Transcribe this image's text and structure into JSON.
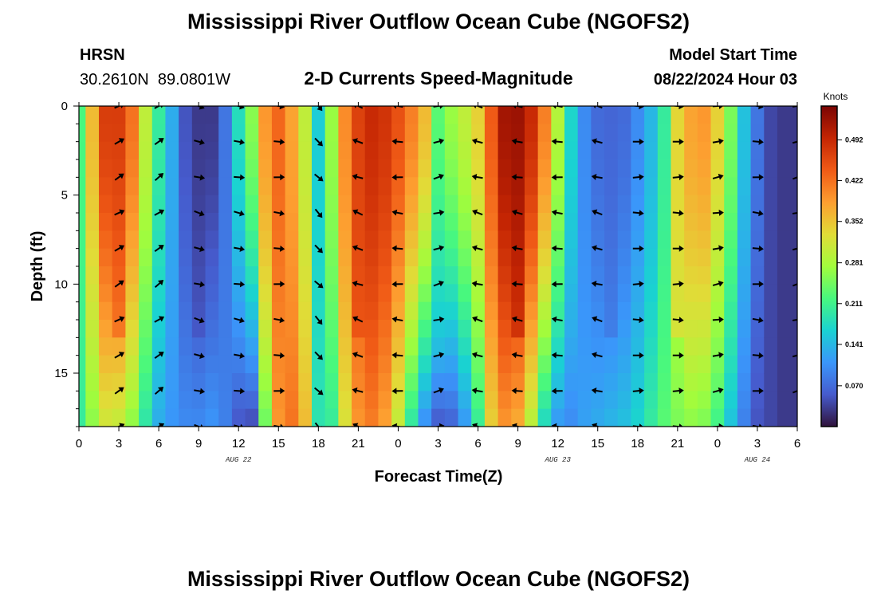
{
  "page": {
    "title_top": "Mississippi River Outflow Ocean Cube (NGOFS2)",
    "title_bottom": "Mississippi River Outflow Ocean Cube (NGOFS2)",
    "station_name": "HRSN",
    "station_coords": "30.2610N  89.0801W",
    "subtitle": "2-D Currents Speed-Magnitude",
    "model_start_label": "Model Start Time",
    "model_start_value": "08/22/2024 Hour 03"
  },
  "chart_data": {
    "type": "heatmap",
    "title": "2-D Currents Speed-Magnitude",
    "xlabel": "Forecast Time(Z)",
    "ylabel": "Depth (ft)",
    "x_range_hours": [
      0,
      54
    ],
    "y_range_ft": [
      0,
      18
    ],
    "x_tick_labels": [
      "0",
      "3",
      "6",
      "9",
      "12",
      "15",
      "18",
      "21",
      "0",
      "3",
      "6",
      "9",
      "12",
      "15",
      "18",
      "21",
      "0",
      "3",
      "6"
    ],
    "y_tick_labels": [
      "0",
      "5",
      "10",
      "15"
    ],
    "y_tick_values": [
      0,
      5,
      10,
      15
    ],
    "date_labels": [
      {
        "text": "AUG 22",
        "hour": 12
      },
      {
        "text": "AUG 23",
        "hour": 36
      },
      {
        "text": "AUG 24",
        "hour": 51
      }
    ],
    "colorbar": {
      "unit": "Knots",
      "range": [
        0.0,
        0.55
      ],
      "tick_labels": [
        "0.492",
        "0.422",
        "0.352",
        "0.281",
        "0.211",
        "0.141",
        "0.070"
      ],
      "tick_values": [
        0.492,
        0.422,
        0.352,
        0.281,
        0.211,
        0.141,
        0.07
      ]
    },
    "series_hours": [
      0,
      1,
      2,
      3,
      4,
      5,
      6,
      7,
      8,
      9,
      10,
      11,
      12,
      13,
      14,
      15,
      16,
      17,
      18,
      19,
      20,
      21,
      22,
      23,
      24,
      25,
      26,
      27,
      28,
      29,
      30,
      31,
      32,
      33,
      34,
      35,
      36,
      37,
      38,
      39,
      40,
      41,
      42,
      43,
      44,
      45,
      46,
      47,
      48,
      49,
      50,
      51,
      52,
      53,
      54
    ],
    "surface_speed_knots": [
      0.22,
      0.36,
      0.47,
      0.49,
      0.42,
      0.3,
      0.2,
      0.13,
      0.05,
      0.02,
      0.03,
      0.08,
      0.18,
      0.26,
      0.39,
      0.43,
      0.38,
      0.3,
      0.16,
      0.27,
      0.4,
      0.46,
      0.49,
      0.48,
      0.45,
      0.41,
      0.36,
      0.31,
      0.27,
      0.3,
      0.34,
      0.44,
      0.52,
      0.53,
      0.49,
      0.41,
      0.29,
      0.17,
      0.1,
      0.07,
      0.06,
      0.07,
      0.1,
      0.14,
      0.2,
      0.31,
      0.38,
      0.39,
      0.34,
      0.25,
      0.15,
      0.08,
      0.04,
      0.03,
      0.03
    ],
    "bottom_speed_knots": [
      0.2,
      0.26,
      0.31,
      0.3,
      0.26,
      0.19,
      0.13,
      0.11,
      0.1,
      0.1,
      0.11,
      0.09,
      0.05,
      0.04,
      0.24,
      0.39,
      0.42,
      0.36,
      0.19,
      0.2,
      0.32,
      0.39,
      0.41,
      0.38,
      0.3,
      0.19,
      0.1,
      0.05,
      0.06,
      0.11,
      0.2,
      0.34,
      0.39,
      0.37,
      0.29,
      0.17,
      0.11,
      0.1,
      0.12,
      0.13,
      0.14,
      0.15,
      0.17,
      0.2,
      0.23,
      0.25,
      0.26,
      0.25,
      0.21,
      0.15,
      0.09,
      0.05,
      0.04,
      0.03,
      0.03
    ],
    "mid_column_speed_knots": [
      {
        "hour": 3,
        "speed": 0.45
      },
      {
        "hour": 9,
        "speed": 0.04
      },
      {
        "hour": 21,
        "speed": 0.47
      },
      {
        "hour": 27,
        "speed": 0.15
      },
      {
        "hour": 33,
        "speed": 0.52
      },
      {
        "hour": 40,
        "speed": 0.07
      },
      {
        "hour": 45,
        "speed": 0.36
      },
      {
        "hour": 52,
        "speed": 0.04
      }
    ],
    "vector_direction_deg_by_hour": [
      {
        "hour": 3,
        "dir": 30
      },
      {
        "hour": 6,
        "dir": 35
      },
      {
        "hour": 9,
        "dir": -15
      },
      {
        "hour": 12,
        "dir": -10
      },
      {
        "hour": 15,
        "dir": -5
      },
      {
        "hour": 18,
        "dir": -45
      },
      {
        "hour": 21,
        "dir": 160
      },
      {
        "hour": 24,
        "dir": 175
      },
      {
        "hour": 27,
        "dir": 15
      },
      {
        "hour": 30,
        "dir": 165
      },
      {
        "hour": 33,
        "dir": 170
      },
      {
        "hour": 36,
        "dir": 175
      },
      {
        "hour": 39,
        "dir": 165
      },
      {
        "hour": 42,
        "dir": 0
      },
      {
        "hour": 45,
        "dir": 0
      },
      {
        "hour": 48,
        "dir": 10
      },
      {
        "hour": 51,
        "dir": -5
      },
      {
        "hour": 54,
        "dir": 15
      }
    ]
  }
}
